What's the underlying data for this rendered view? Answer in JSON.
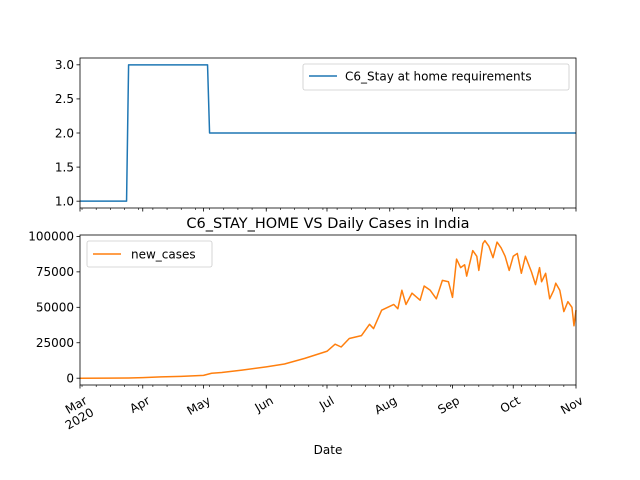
{
  "chart_data": {
    "type": "line",
    "title": "C6_STAY_HOME VS Daily Cases in India",
    "xlabel": "Date",
    "x_tick_labels": [
      "Mar\n2020",
      "Apr",
      "May",
      "Jun",
      "Jul",
      "Aug",
      "Sep",
      "Oct",
      "Nov"
    ],
    "x_tick_dates": [
      "2020-03-01",
      "2020-04-01",
      "2020-05-01",
      "2020-06-01",
      "2020-07-01",
      "2020-08-01",
      "2020-09-01",
      "2020-10-01",
      "2020-11-01"
    ],
    "xlim": [
      "2020-03-01",
      "2020-11-01"
    ],
    "panels": [
      {
        "legend_position": "upper right",
        "ylim": [
          0.9,
          3.1
        ],
        "y_ticks": [
          "1.0",
          "1.5",
          "2.0",
          "2.5",
          "3.0"
        ],
        "series": [
          {
            "name": "C6_Stay at home requirements",
            "color": "#1f77b4",
            "points": [
              [
                "2020-03-01",
                1
              ],
              [
                "2020-03-24",
                1
              ],
              [
                "2020-03-25",
                3
              ],
              [
                "2020-05-03",
                3
              ],
              [
                "2020-05-04",
                2
              ],
              [
                "2020-11-01",
                2
              ]
            ]
          }
        ]
      },
      {
        "legend_position": "upper left",
        "ylim": [
          -4800,
          101000
        ],
        "y_ticks": [
          "0",
          "25000",
          "50000",
          "75000",
          "100000"
        ],
        "series": [
          {
            "name": "new_cases",
            "color": "#ff7f0e",
            "points": [
              [
                "2020-03-01",
                0
              ],
              [
                "2020-03-15",
                50
              ],
              [
                "2020-03-25",
                100
              ],
              [
                "2020-04-01",
                400
              ],
              [
                "2020-04-10",
                900
              ],
              [
                "2020-04-20",
                1300
              ],
              [
                "2020-05-01",
                2000
              ],
              [
                "2020-05-05",
                3500
              ],
              [
                "2020-05-10",
                4000
              ],
              [
                "2020-05-20",
                5700
              ],
              [
                "2020-06-01",
                8000
              ],
              [
                "2020-06-10",
                10000
              ],
              [
                "2020-06-20",
                14000
              ],
              [
                "2020-07-01",
                19000
              ],
              [
                "2020-07-05",
                24000
              ],
              [
                "2020-07-08",
                22000
              ],
              [
                "2020-07-12",
                28000
              ],
              [
                "2020-07-18",
                30000
              ],
              [
                "2020-07-22",
                38000
              ],
              [
                "2020-07-24",
                35000
              ],
              [
                "2020-07-28",
                48000
              ],
              [
                "2020-07-31",
                50000
              ],
              [
                "2020-08-03",
                52000
              ],
              [
                "2020-08-05",
                49000
              ],
              [
                "2020-08-07",
                62000
              ],
              [
                "2020-08-09",
                52000
              ],
              [
                "2020-08-12",
                60000
              ],
              [
                "2020-08-16",
                55000
              ],
              [
                "2020-08-18",
                65000
              ],
              [
                "2020-08-21",
                62000
              ],
              [
                "2020-08-24",
                56000
              ],
              [
                "2020-08-27",
                69000
              ],
              [
                "2020-08-30",
                68000
              ],
              [
                "2020-09-01",
                57000
              ],
              [
                "2020-09-03",
                84000
              ],
              [
                "2020-09-05",
                78000
              ],
              [
                "2020-09-07",
                80000
              ],
              [
                "2020-09-08",
                72000
              ],
              [
                "2020-09-11",
                90000
              ],
              [
                "2020-09-13",
                86000
              ],
              [
                "2020-09-14",
                76000
              ],
              [
                "2020-09-16",
                95000
              ],
              [
                "2020-09-17",
                97000
              ],
              [
                "2020-09-19",
                93000
              ],
              [
                "2020-09-21",
                85000
              ],
              [
                "2020-09-23",
                96000
              ],
              [
                "2020-09-25",
                92000
              ],
              [
                "2020-09-27",
                86000
              ],
              [
                "2020-09-29",
                76000
              ],
              [
                "2020-10-01",
                86000
              ],
              [
                "2020-10-03",
                88000
              ],
              [
                "2020-10-05",
                74000
              ],
              [
                "2020-10-07",
                86000
              ],
              [
                "2020-10-10",
                75000
              ],
              [
                "2020-10-12",
                66000
              ],
              [
                "2020-10-14",
                78000
              ],
              [
                "2020-10-15",
                68000
              ],
              [
                "2020-10-17",
                74000
              ],
              [
                "2020-10-19",
                56000
              ],
              [
                "2020-10-21",
                62000
              ],
              [
                "2020-10-22",
                67000
              ],
              [
                "2020-10-24",
                62000
              ],
              [
                "2020-10-26",
                47000
              ],
              [
                "2020-10-28",
                54000
              ],
              [
                "2020-10-30",
                50000
              ],
              [
                "2020-10-31",
                37000
              ],
              [
                "2020-11-01",
                48000
              ]
            ]
          }
        ]
      }
    ]
  },
  "styles": {
    "axis_color": "#000000",
    "legend_border": "#cccccc"
  }
}
